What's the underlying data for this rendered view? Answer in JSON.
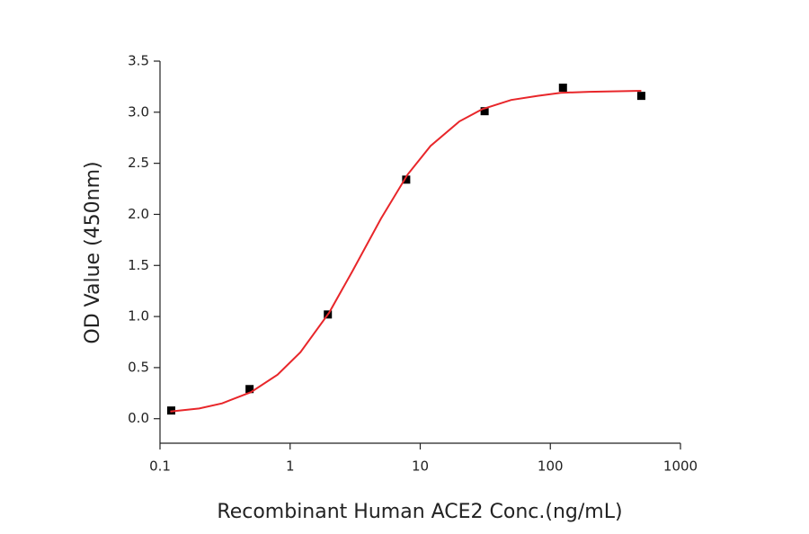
{
  "chart_data": {
    "type": "scatter",
    "x_label": "Recombinant Human ACE2 Conc.(ng/mL)",
    "y_label": "OD Value (450nm)",
    "xscale": "log",
    "xlim": [
      0.1,
      1000
    ],
    "xticks": [
      0.1,
      1,
      10,
      100,
      1000
    ],
    "ylim": [
      -0.24,
      3.5
    ],
    "yticks": [
      {
        "value": 0,
        "label": "0.0"
      },
      {
        "value": 0.5,
        "label": "0.5"
      },
      {
        "value": 1,
        "label": "1.0"
      },
      {
        "value": 1.5,
        "label": "1.5"
      },
      {
        "value": 2,
        "label": "2.0"
      },
      {
        "value": 2.5,
        "label": "2.5"
      },
      {
        "value": 3,
        "label": "3.0"
      },
      {
        "value": 3.5,
        "label": "3.5"
      }
    ],
    "grid": false,
    "series": [
      {
        "type": "scatter",
        "color": "#000000",
        "x": [
          0.122,
          0.488,
          1.95,
          7.8,
          31.25,
          125,
          500
        ],
        "values": [
          0.08,
          0.29,
          1.02,
          2.34,
          3.01,
          3.24,
          3.16
        ]
      },
      {
        "type": "line",
        "color": "#e8262a",
        "x": [
          0.12,
          0.2,
          0.3,
          0.5,
          0.8,
          1.2,
          2,
          3,
          5,
          8,
          12,
          20,
          30,
          50,
          80,
          120,
          200,
          500
        ],
        "values": [
          0.07,
          0.1,
          0.15,
          0.26,
          0.43,
          0.65,
          1.04,
          1.44,
          1.96,
          2.39,
          2.67,
          2.91,
          3.03,
          3.12,
          3.16,
          3.19,
          3.2,
          3.21
        ]
      }
    ]
  }
}
